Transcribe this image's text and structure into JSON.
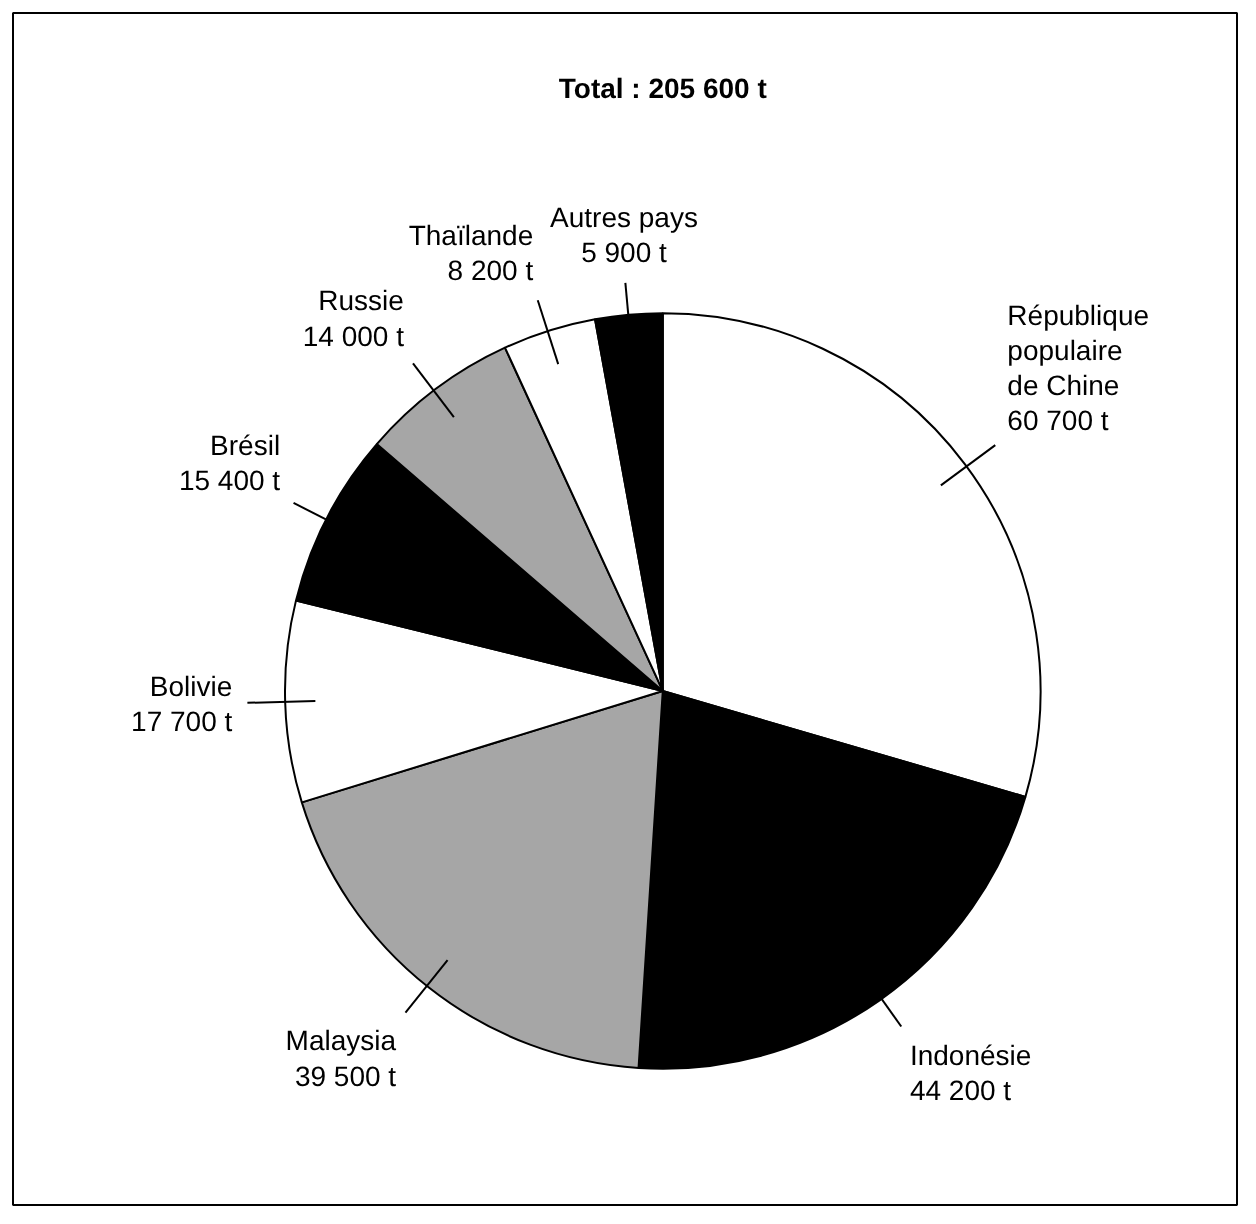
{
  "chart_data": {
    "type": "pie",
    "title": "Total : 205 600 t",
    "categories": [
      "République populaire de Chine",
      "Indonésie",
      "Malaysia",
      "Bolivie",
      "Brésil",
      "Russie",
      "Thaïlande",
      "Autres pays"
    ],
    "values": [
      60700,
      44200,
      39500,
      17700,
      15400,
      14000,
      8200,
      5900
    ],
    "value_labels": [
      "60 700 t",
      "44 200 t",
      "39 500 t",
      "17 700 t",
      "15 400 t",
      "14 000 t",
      "8 200 t",
      "5 900 t"
    ],
    "colors": [
      "#ffffff",
      "#000000",
      "#a6a6a6",
      "#ffffff",
      "#000000",
      "#a6a6a6",
      "#ffffff",
      "#000000"
    ]
  }
}
